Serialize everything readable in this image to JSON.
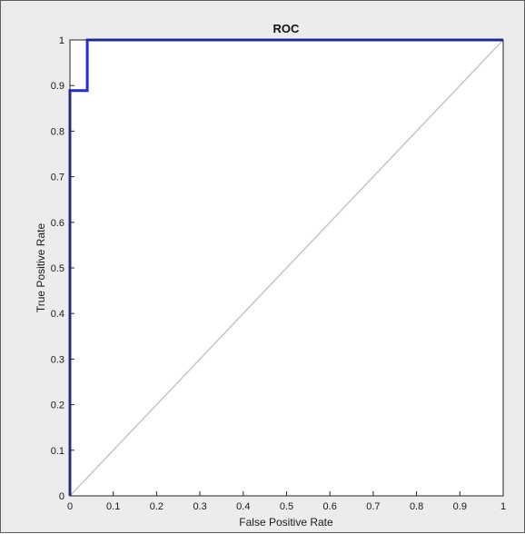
{
  "chart_data": {
    "type": "line",
    "title": "ROC",
    "xlabel": "False Positive Rate",
    "ylabel": "True Positive Rate",
    "xlim": [
      0,
      1
    ],
    "ylim": [
      0,
      1
    ],
    "xticks": [
      0,
      0.1,
      0.2,
      0.3,
      0.4,
      0.5,
      0.6,
      0.7,
      0.8,
      0.9,
      1
    ],
    "yticks": [
      0,
      0.1,
      0.2,
      0.3,
      0.4,
      0.5,
      0.6,
      0.7,
      0.8,
      0.9,
      1
    ],
    "xtick_labels": [
      "0",
      "0.1",
      "0.2",
      "0.3",
      "0.4",
      "0.5",
      "0.6",
      "0.7",
      "0.8",
      "0.9",
      "1"
    ],
    "ytick_labels": [
      "0",
      "0.1",
      "0.2",
      "0.3",
      "0.4",
      "0.5",
      "0.6",
      "0.7",
      "0.8",
      "0.9",
      "1"
    ],
    "grid": false,
    "legend": false,
    "series": [
      {
        "color": "#1f2fd6",
        "x": [
          0,
          0,
          0.04,
          0.04,
          1
        ],
        "y": [
          0,
          0.889,
          0.889,
          1,
          1
        ]
      },
      {
        "color": "#c8c8c8",
        "x": [
          0,
          1
        ],
        "y": [
          0,
          1
        ]
      }
    ]
  }
}
